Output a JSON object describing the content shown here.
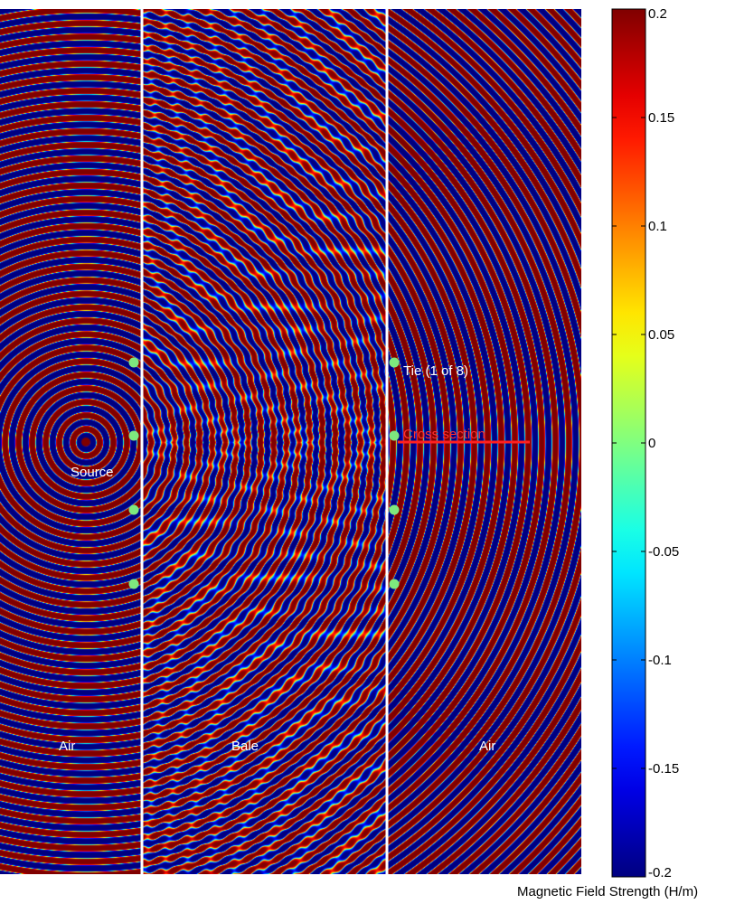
{
  "chart_data": {
    "type": "heatmap",
    "title": "",
    "xlabel": "",
    "ylabel": "",
    "colorbar": {
      "label": "Magnetic Field Strength (H/m)",
      "colormap": "jet",
      "clim": [
        -0.2,
        0.2
      ],
      "ticks": [
        0.2,
        0.15,
        0.1,
        0.05,
        0,
        -0.05,
        -0.1,
        -0.15,
        -0.2
      ],
      "tick_labels": [
        "0.2",
        "0.15",
        "0.1",
        "0.05",
        "0",
        "-0.05",
        "-0.1",
        "-0.15",
        "-0.2"
      ]
    },
    "regions": [
      {
        "label": "Air"
      },
      {
        "label": "Bale"
      },
      {
        "label": "Air"
      }
    ],
    "annotations": {
      "source": "Source",
      "tie": "Tie (1 of 8)",
      "cross_section": "Cross section"
    },
    "boundary_color": "#ffffff",
    "tie_marker_color": "#7ee87e",
    "cross_section_color": "#ff2020"
  }
}
